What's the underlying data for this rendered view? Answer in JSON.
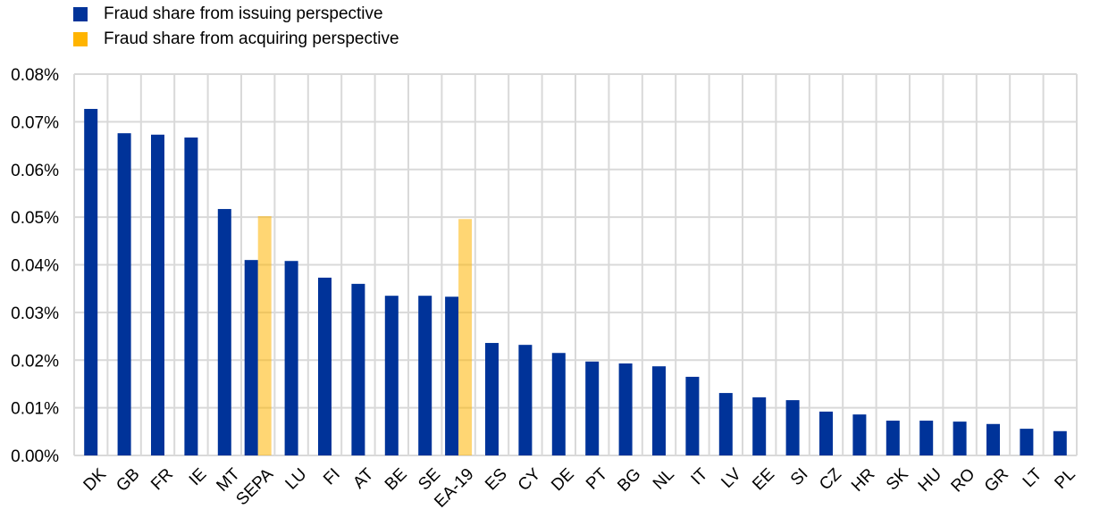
{
  "chart_data": {
    "type": "bar",
    "title": "",
    "xlabel": "",
    "ylabel": "",
    "ylim": [
      0,
      0.08
    ],
    "yticks": [
      "0.00%",
      "0.01%",
      "0.02%",
      "0.03%",
      "0.04%",
      "0.05%",
      "0.06%",
      "0.07%",
      "0.08%"
    ],
    "grid": true,
    "legend_position": "top-left",
    "categories": [
      "DK",
      "GB",
      "FR",
      "IE",
      "MT",
      "SEPA",
      "LU",
      "FI",
      "AT",
      "BE",
      "SE",
      "EA-19",
      "ES",
      "CY",
      "DE",
      "PT",
      "BG",
      "NL",
      "IT",
      "LV",
      "EE",
      "SI",
      "CZ",
      "HR",
      "SK",
      "HU",
      "RO",
      "GR",
      "LT",
      "PL"
    ],
    "series": [
      {
        "name": "Fraud share from issuing perspective",
        "color": "#003399",
        "values": [
          0.0727,
          0.0676,
          0.0673,
          0.0667,
          0.0517,
          0.041,
          0.0408,
          0.0373,
          0.036,
          0.0335,
          0.0335,
          0.0333,
          0.0236,
          0.0232,
          0.0215,
          0.0197,
          0.0193,
          0.0187,
          0.0165,
          0.0131,
          0.0122,
          0.0116,
          0.0092,
          0.0086,
          0.0073,
          0.0073,
          0.0071,
          0.0066,
          0.0056,
          0.0051
        ]
      },
      {
        "name": "Fraud share from acquiring perspective",
        "color": "#FFB400",
        "values": [
          null,
          null,
          null,
          null,
          null,
          0.0502,
          null,
          null,
          null,
          null,
          null,
          0.0496,
          null,
          null,
          null,
          null,
          null,
          null,
          null,
          null,
          null,
          null,
          null,
          null,
          null,
          null,
          null,
          null,
          null,
          null
        ]
      }
    ]
  }
}
